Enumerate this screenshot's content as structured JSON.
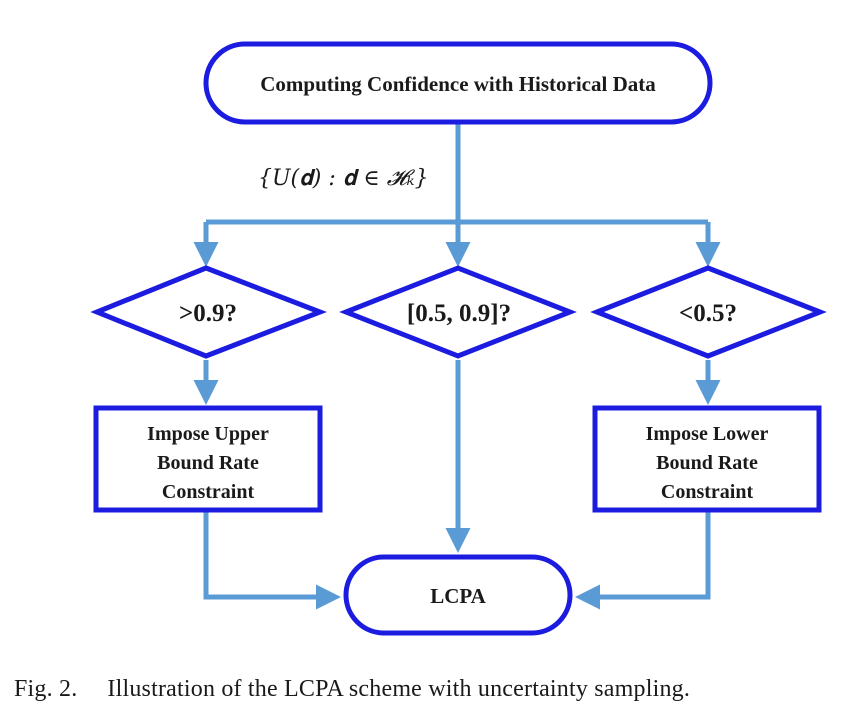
{
  "diagram": {
    "start_node": "Computing Confidence with Historical Data",
    "edge_label": "{U(𝐝) : 𝐝 ∈ 𝓗ₖ}",
    "decisions": [
      {
        "label": ">0.9?"
      },
      {
        "label": "[0.5, 0.9]?"
      },
      {
        "label": "<0.5?"
      }
    ],
    "upper_box": [
      "Impose Upper",
      "Bound Rate",
      "Constraint"
    ],
    "lower_box": [
      "Impose Lower",
      "Bound Rate",
      "Constraint"
    ],
    "end_node": "LCPA",
    "colors": {
      "node_border": "#1c1ce0",
      "connector": "#5b9bd5",
      "text": "#1a1a1a"
    }
  },
  "caption": {
    "figure_number": "Fig. 2.",
    "text": "Illustration of the LCPA scheme with uncertainty sampling."
  }
}
